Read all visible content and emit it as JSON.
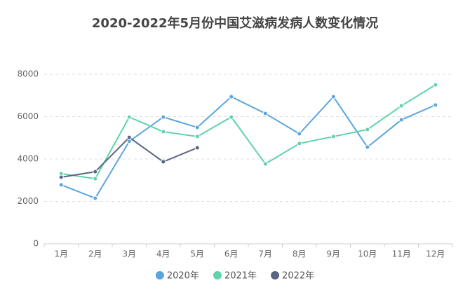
{
  "chart_data": {
    "type": "line",
    "title": "2020-2022年5月份中国艾滋病发病人数变化情况",
    "categories": [
      "1月",
      "2月",
      "3月",
      "4月",
      "5月",
      "6月",
      "7月",
      "8月",
      "9月",
      "10月",
      "11月",
      "12月"
    ],
    "series": [
      {
        "name": "2020年",
        "color": "#5aa5dc",
        "values": [
          2780,
          2150,
          4830,
          5980,
          5490,
          6940,
          6150,
          5190,
          6940,
          4560,
          5850,
          6550
        ]
      },
      {
        "name": "2021年",
        "color": "#5fd3a8",
        "values": [
          3310,
          3070,
          5980,
          5290,
          5060,
          5980,
          3770,
          4730,
          5060,
          5390,
          6510,
          7500
        ]
      },
      {
        "name": "2022年",
        "color": "#5a6585",
        "values": [
          3140,
          3400,
          5020,
          3870,
          4530,
          null,
          null,
          null,
          null,
          null,
          null,
          null
        ]
      }
    ],
    "ylim": [
      0,
      8000
    ],
    "yticks": [
      0,
      2000,
      4000,
      6000,
      8000
    ],
    "grid": true
  }
}
